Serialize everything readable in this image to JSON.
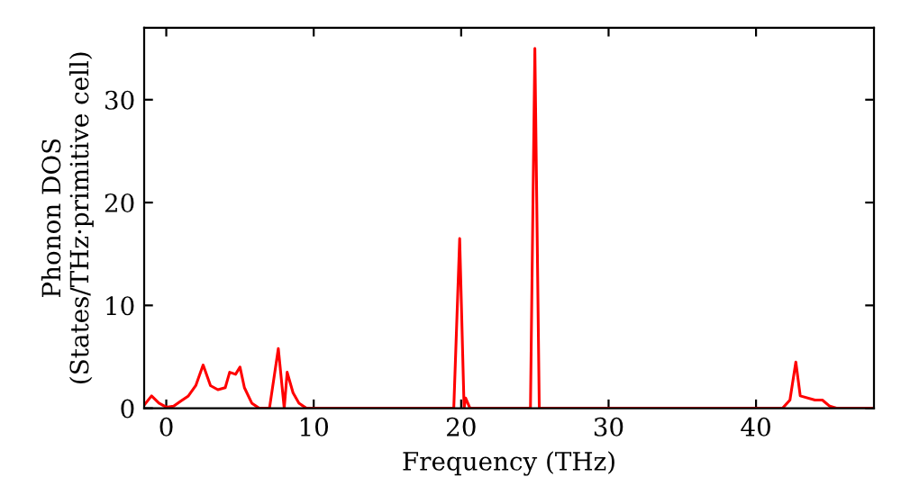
{
  "chart_data": {
    "type": "line",
    "xlabel": "Frequency (THz)",
    "ylabel": "Phonon DOS\n(States/THz·primitive cell)",
    "series": [
      {
        "color": "#ff0000",
        "x": [
          -1.5,
          -1.0,
          -0.5,
          0,
          0.5,
          1,
          1.5,
          2,
          2.5,
          3,
          3.5,
          4,
          4.3,
          4.7,
          5,
          5.3,
          5.8,
          6.3,
          7,
          7.6,
          8,
          8.2,
          8.6,
          9,
          9.5,
          19.5,
          19.9,
          20.2,
          20.3,
          20.6,
          24.7,
          25.0,
          25.3,
          41.8,
          42.3,
          42.7,
          43,
          44,
          44.5,
          45,
          45.5,
          48
        ],
        "values": [
          0.3,
          1.2,
          0.5,
          0.1,
          0.2,
          0.7,
          1.2,
          2.2,
          4.2,
          2.2,
          1.8,
          2.0,
          3.5,
          3.3,
          4.0,
          2.0,
          0.5,
          0,
          0,
          5.8,
          0,
          3.5,
          1.5,
          0.5,
          0,
          0,
          16.5,
          0,
          1.0,
          0,
          0,
          35,
          0,
          0,
          0.8,
          4.5,
          1.2,
          0.8,
          0.8,
          0.2,
          0,
          0
        ]
      }
    ],
    "xlim": [
      -1.5,
      48
    ],
    "ylim": [
      0,
      37
    ],
    "xticks": [
      0,
      10,
      20,
      30,
      40
    ],
    "yticks": [
      0,
      10,
      20,
      30
    ],
    "grid": false,
    "legend": false
  }
}
